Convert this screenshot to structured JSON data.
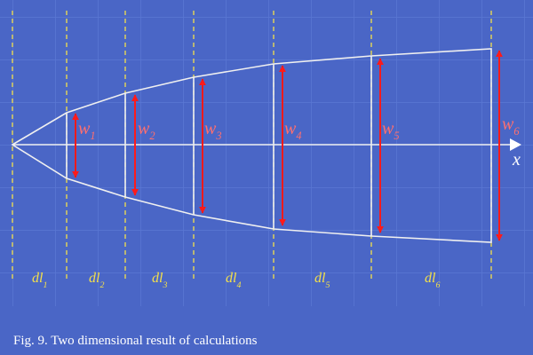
{
  "widths": [
    {
      "symbol": "w",
      "index": "1"
    },
    {
      "symbol": "w",
      "index": "2"
    },
    {
      "symbol": "w",
      "index": "3"
    },
    {
      "symbol": "w",
      "index": "4"
    },
    {
      "symbol": "w",
      "index": "5"
    },
    {
      "symbol": "w",
      "index": "6"
    }
  ],
  "segments": [
    {
      "symbol": "dl",
      "index": "1"
    },
    {
      "symbol": "dl",
      "index": "2"
    },
    {
      "symbol": "dl",
      "index": "3"
    },
    {
      "symbol": "dl",
      "index": "4"
    },
    {
      "symbol": "dl",
      "index": "5"
    },
    {
      "symbol": "dl",
      "index": "6"
    }
  ],
  "axis_label": "x",
  "caption": "Fig. 9. Two dimensional result of calculations"
}
